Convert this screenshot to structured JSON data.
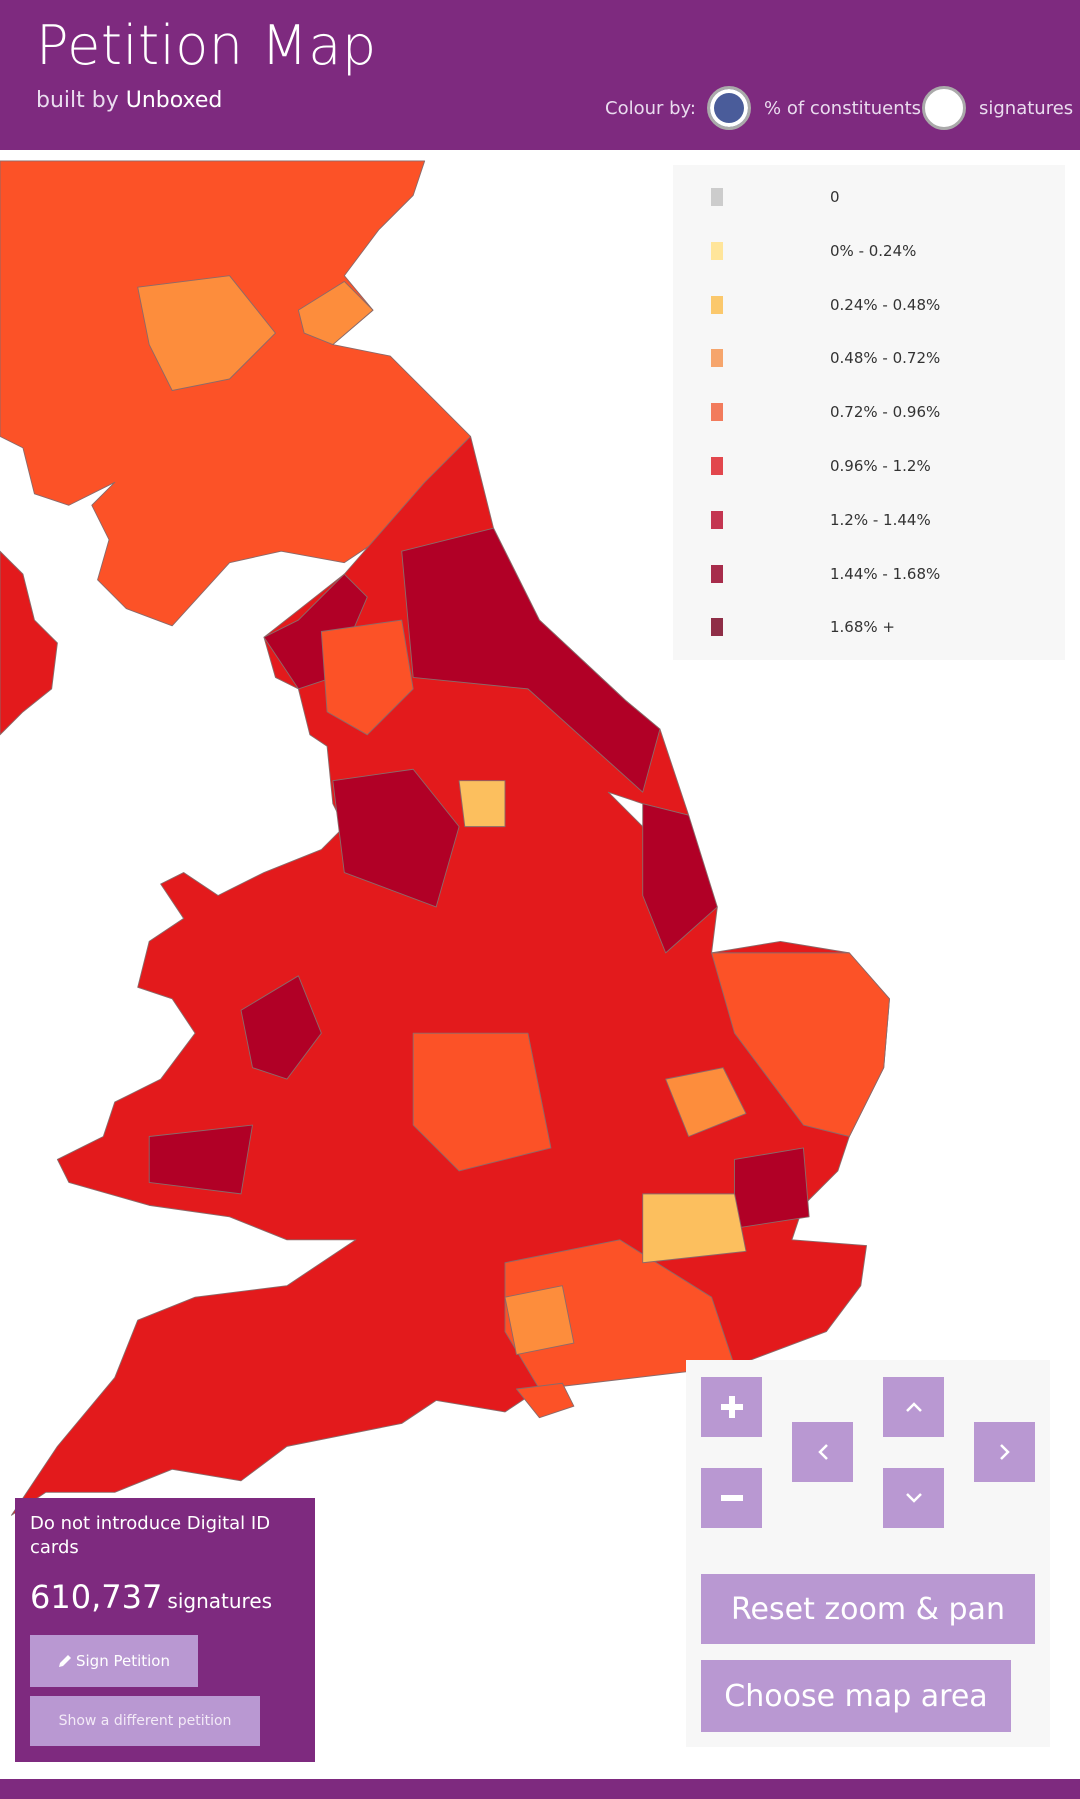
{
  "header": {
    "title": "Petition Map",
    "subtitle_prefix": "built by",
    "subtitle_link": "Unboxed"
  },
  "colour_by": {
    "label": "Colour by:",
    "options": [
      "% of constituents",
      "signatures"
    ]
  },
  "legend": [
    {
      "label": "0",
      "color": "#cccccc"
    },
    {
      "label": "0% - 0.24%",
      "color": "#ffe59a"
    },
    {
      "label": "0.24% - 0.48%",
      "color": "#fbc86c"
    },
    {
      "label": "0.48% - 0.72%",
      "color": "#f6a56c"
    },
    {
      "label": "0.72% - 0.96%",
      "color": "#f27b5c"
    },
    {
      "label": "0.96% - 1.2%",
      "color": "#e2474d"
    },
    {
      "label": "1.2% - 1.44%",
      "color": "#c43651"
    },
    {
      "label": "1.44% - 1.68%",
      "color": "#a72c4b"
    },
    {
      "label": "1.68% +",
      "color": "#8f2e47"
    }
  ],
  "petition": {
    "title": "Do not introduce Digital ID cards",
    "count": "610,737",
    "unit": "signatures",
    "sign_button": "Sign Petition",
    "other_button": "Show a different petition"
  },
  "controls": {
    "reset": "Reset zoom & pan",
    "choose_area": "Choose map area"
  }
}
